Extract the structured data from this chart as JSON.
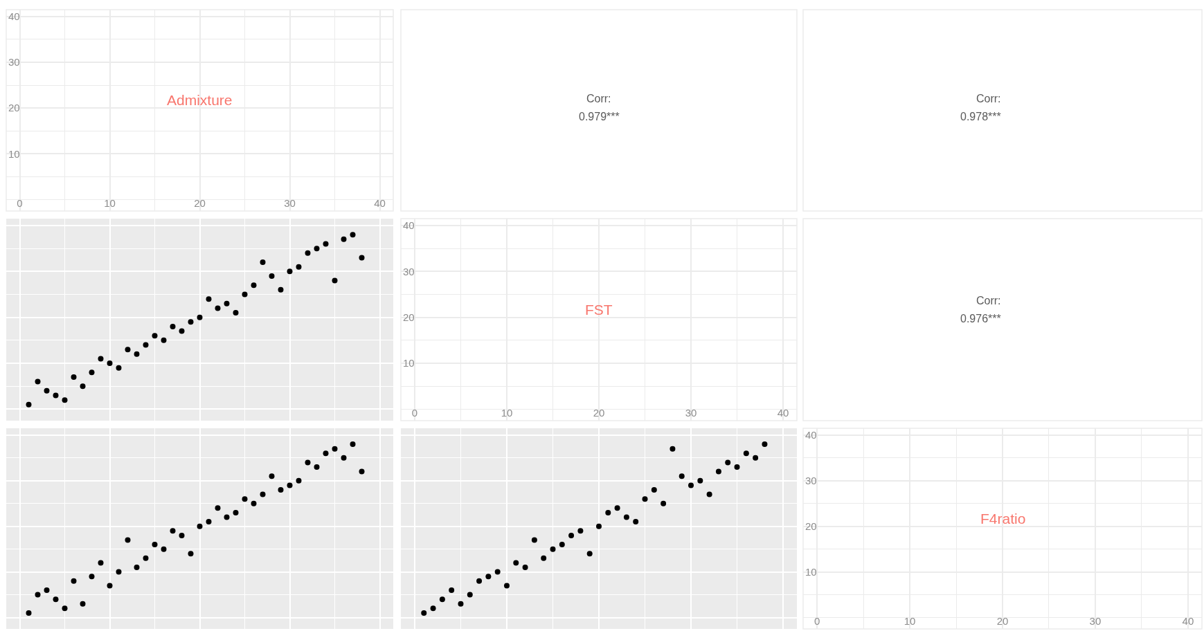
{
  "chart_data": [
    {
      "type": "scatter",
      "title": "Admixture",
      "xlim": [
        -1.5,
        41.5
      ],
      "ylim": [
        -2.5,
        41.5
      ],
      "xticks": [
        0,
        10,
        20,
        30,
        40
      ],
      "yticks": [
        10,
        20,
        30,
        40
      ],
      "grid": true
    },
    {
      "type": "other",
      "title": "Corr:",
      "annotations": [
        "0.979***"
      ]
    },
    {
      "type": "other",
      "title": "Corr:",
      "annotations": [
        "0.978***"
      ]
    },
    {
      "type": "scatter",
      "x": [
        1,
        2,
        3,
        4,
        5,
        6,
        7,
        8,
        9,
        10,
        11,
        12,
        13,
        14,
        15,
        16,
        17,
        18,
        19,
        20,
        21,
        22,
        23,
        24,
        25,
        26,
        27,
        28,
        29,
        30,
        31,
        32,
        33,
        34,
        35,
        36,
        37,
        38
      ],
      "series": [
        {
          "color": "#000000",
          "values": [
            1,
            6,
            4,
            3,
            2,
            7,
            5,
            8,
            11,
            10,
            9,
            13,
            12,
            14,
            16,
            15,
            18,
            17,
            19,
            20,
            24,
            22,
            23,
            21,
            25,
            27,
            32,
            29,
            26,
            30,
            31,
            34,
            35,
            36,
            28,
            37,
            38,
            33
          ]
        }
      ],
      "xlim": [
        -1.5,
        41.5
      ],
      "ylim": [
        -2.5,
        41.5
      ],
      "xticks": [
        0,
        10,
        20,
        30,
        40
      ],
      "yticks": [
        0,
        10,
        20,
        30,
        40
      ],
      "grid": true,
      "marker": "circle",
      "tick_labels": false
    },
    {
      "type": "scatter",
      "title": "FST",
      "xlim": [
        -1.5,
        41.5
      ],
      "ylim": [
        -2.5,
        41.5
      ],
      "xticks": [
        0,
        10,
        20,
        30,
        40
      ],
      "yticks": [
        10,
        20,
        30,
        40
      ],
      "grid": true
    },
    {
      "type": "other",
      "title": "Corr:",
      "annotations": [
        "0.976***"
      ]
    },
    {
      "type": "scatter",
      "x": [
        1,
        2,
        3,
        4,
        5,
        6,
        7,
        8,
        9,
        10,
        11,
        12,
        13,
        14,
        15,
        16,
        17,
        18,
        19,
        20,
        21,
        22,
        23,
        24,
        25,
        26,
        27,
        28,
        29,
        30,
        31,
        32,
        33,
        34,
        35,
        36,
        37,
        38
      ],
      "series": [
        {
          "color": "#000000",
          "values": [
            1,
            5,
            6,
            4,
            2,
            8,
            3,
            9,
            12,
            7,
            10,
            17,
            11,
            13,
            16,
            15,
            19,
            18,
            14,
            20,
            21,
            24,
            22,
            23,
            26,
            25,
            27,
            31,
            28,
            29,
            30,
            34,
            33,
            36,
            37,
            35,
            38,
            32
          ]
        }
      ],
      "xlim": [
        -1.5,
        41.5
      ],
      "ylim": [
        -2.5,
        41.5
      ],
      "xticks": [
        0,
        10,
        20,
        30,
        40
      ],
      "yticks": [
        0,
        10,
        20,
        30,
        40
      ],
      "grid": true,
      "marker": "circle",
      "tick_labels": false
    },
    {
      "type": "scatter",
      "x": [
        1,
        2,
        3,
        4,
        5,
        6,
        7,
        8,
        9,
        10,
        11,
        12,
        13,
        14,
        15,
        16,
        17,
        18,
        19,
        20,
        21,
        22,
        23,
        24,
        25,
        26,
        27,
        28,
        29,
        30,
        31,
        32,
        33,
        34,
        35,
        36,
        37,
        38
      ],
      "series": [
        {
          "color": "#000000",
          "values": [
            1,
            2,
            4,
            6,
            3,
            5,
            8,
            9,
            10,
            7,
            12,
            11,
            17,
            13,
            15,
            16,
            18,
            19,
            14,
            20,
            23,
            24,
            22,
            21,
            26,
            28,
            25,
            37,
            31,
            29,
            30,
            27,
            32,
            34,
            33,
            36,
            35,
            38
          ]
        }
      ],
      "xlim": [
        -1.5,
        41.5
      ],
      "ylim": [
        -2.5,
        41.5
      ],
      "xticks": [
        0,
        10,
        20,
        30,
        40
      ],
      "yticks": [
        0,
        10,
        20,
        30,
        40
      ],
      "grid": true,
      "marker": "circle",
      "tick_labels": false
    },
    {
      "type": "scatter",
      "title": "F4ratio",
      "xlim": [
        -1.5,
        41.5
      ],
      "ylim": [
        -2.5,
        41.5
      ],
      "xticks": [
        0,
        10,
        20,
        30,
        40
      ],
      "yticks": [
        10,
        20,
        30,
        40
      ],
      "grid": true
    }
  ]
}
